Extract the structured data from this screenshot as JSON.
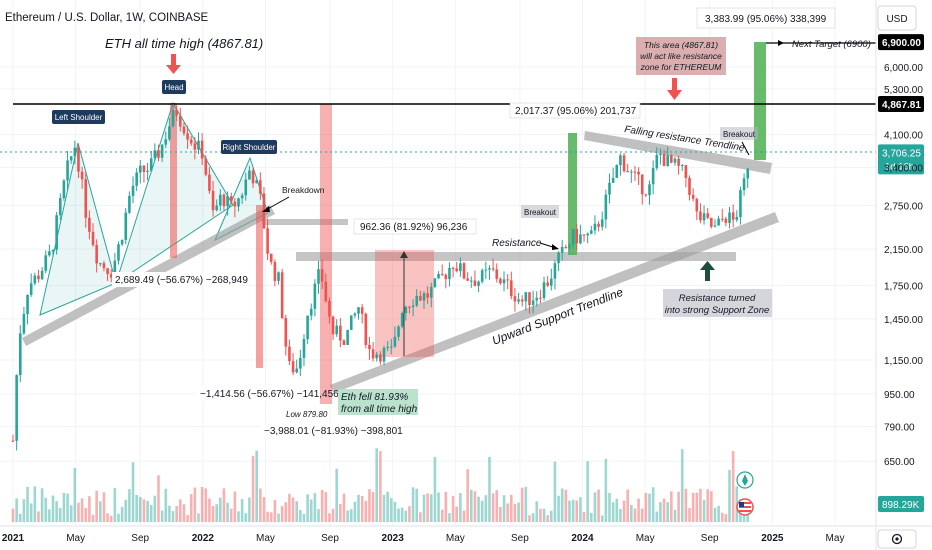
{
  "chart_data": {
    "type": "candlestick",
    "title": "Ethereum / U.S. Dollar, 1W, COINBASE",
    "currency": "USD",
    "x_ticks": [
      "2021",
      "May",
      "Sep",
      "2022",
      "May",
      "Sep",
      "2023",
      "May",
      "Sep",
      "2024",
      "May",
      "Sep",
      "2025",
      "May"
    ],
    "x_tick_time": [
      2021.0,
      2021.33,
      2021.67,
      2022.0,
      2022.33,
      2022.67,
      2023.0,
      2023.33,
      2023.67,
      2024.0,
      2024.33,
      2024.67,
      2025.0,
      2025.33
    ],
    "x_range": [
      2021.0,
      2025.33
    ],
    "y_scale": "log",
    "y_ticks": [
      "6,900.00",
      "6,000.00",
      "5,300.00",
      "4,867.81",
      "4,100.00",
      "3,706.25",
      "3,400.00",
      "2,750.00",
      "2,150.00",
      "1,750.00",
      "1,450.00",
      "1,150.00",
      "950.00",
      "790.00",
      "650.00"
    ],
    "y_tick_values": [
      6900,
      6000,
      5300,
      4867.81,
      4100,
      3706.25,
      3400,
      2750,
      2150,
      1750,
      1450,
      1150,
      950,
      790,
      650
    ],
    "y_range": [
      520,
      7600
    ],
    "price_line": {
      "value": "3,706.25",
      "countdown": "1d 16h"
    },
    "ath_line": {
      "value": 4867.81,
      "label": "4,867.81"
    },
    "target_line": {
      "value": 6900,
      "label": "6,900.00"
    },
    "volume_label": "898.29K",
    "price_path": [
      [
        2021.0,
        730
      ],
      [
        2021.03,
        1300
      ],
      [
        2021.08,
        1750
      ],
      [
        2021.13,
        1850
      ],
      [
        2021.2,
        2100
      ],
      [
        2021.28,
        3300
      ],
      [
        2021.33,
        3900
      ],
      [
        2021.38,
        2700
      ],
      [
        2021.45,
        2000
      ],
      [
        2021.52,
        1900
      ],
      [
        2021.57,
        2300
      ],
      [
        2021.62,
        3000
      ],
      [
        2021.67,
        3300
      ],
      [
        2021.72,
        3400
      ],
      [
        2021.78,
        3800
      ],
      [
        2021.82,
        4300
      ],
      [
        2021.86,
        4700
      ],
      [
        2021.9,
        4300
      ],
      [
        2021.95,
        3900
      ],
      [
        2022.0,
        3700
      ],
      [
        2022.05,
        2600
      ],
      [
        2022.1,
        2900
      ],
      [
        2022.15,
        2700
      ],
      [
        2022.2,
        2900
      ],
      [
        2022.25,
        3400
      ],
      [
        2022.3,
        2900
      ],
      [
        2022.35,
        2000
      ],
      [
        2022.4,
        1800
      ],
      [
        2022.45,
        1100
      ],
      [
        2022.5,
        1100
      ],
      [
        2022.55,
        1500
      ],
      [
        2022.62,
        1900
      ],
      [
        2022.68,
        1350
      ],
      [
        2022.75,
        1300
      ],
      [
        2022.82,
        1550
      ],
      [
        2022.88,
        1200
      ],
      [
        2022.94,
        1200
      ],
      [
        2023.0,
        1200
      ],
      [
        2023.05,
        1550
      ],
      [
        2023.12,
        1650
      ],
      [
        2023.18,
        1650
      ],
      [
        2023.25,
        1800
      ],
      [
        2023.32,
        2000
      ],
      [
        2023.38,
        1850
      ],
      [
        2023.45,
        1800
      ],
      [
        2023.52,
        1900
      ],
      [
        2023.6,
        1750
      ],
      [
        2023.68,
        1600
      ],
      [
        2023.75,
        1650
      ],
      [
        2023.82,
        1800
      ],
      [
        2023.88,
        2050
      ],
      [
        2023.95,
        2300
      ],
      [
        2024.0,
        2300
      ],
      [
        2024.05,
        2300
      ],
      [
        2024.1,
        2600
      ],
      [
        2024.15,
        3100
      ],
      [
        2024.2,
        3600
      ],
      [
        2024.25,
        3300
      ],
      [
        2024.3,
        3100
      ],
      [
        2024.35,
        3000
      ],
      [
        2024.4,
        3700
      ],
      [
        2024.45,
        3500
      ],
      [
        2024.5,
        3400
      ],
      [
        2024.55,
        3200
      ],
      [
        2024.6,
        2600
      ],
      [
        2024.65,
        2500
      ],
      [
        2024.7,
        2400
      ],
      [
        2024.75,
        2600
      ],
      [
        2024.8,
        2500
      ],
      [
        2024.85,
        3100
      ],
      [
        2024.88,
        3700
      ]
    ],
    "measurements": [
      "2,689.49 (−56.67%) −268,949",
      "−1,414.56 (−56.67%) −141,456",
      "−3,988.01 (−81.93%) −398,801",
      "962.36 (81.92%) 96,236",
      "2,017.37 (95.06%) 201,737",
      "3,383.99 (95.06%) 338,399"
    ]
  },
  "annotations": {
    "ath": "ETH all time high (4867.81)",
    "head": "Head",
    "left_shoulder": "Left Shoulder",
    "right_shoulder": "Right Shoulder",
    "breakdown": "Breakdown",
    "breakout_1": "Breakout",
    "breakout_2": "Breakout",
    "resistance": "Resistance",
    "falling_resistance": "Falling resistance Trendline",
    "upward_support": "Upward Support Trendline",
    "support_zone_1": "Resistance turned",
    "support_zone_2": "into strong Support Zone",
    "zone_note_1": "This area (4867.81)",
    "zone_note_2": "will act like resistance",
    "zone_note_3": "zone for ETHEREUM",
    "next_target": "Next Target (6900)",
    "low": "Low 879.80",
    "eth_fell_1": "Eth fell 81.93%",
    "eth_fell_2": "from all time high"
  },
  "colors": {
    "up": "#26a69a",
    "down": "#ef5350",
    "green_box": "#4caf50",
    "red_box": "#ef5350",
    "gray_band": "#9e9e9e",
    "axis_text": "#131722",
    "price_tag": "#26a69a"
  }
}
